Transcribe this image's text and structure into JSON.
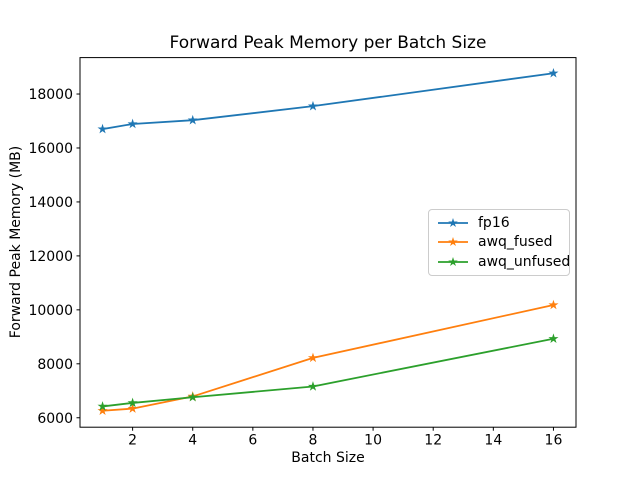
{
  "chart_data": {
    "type": "line",
    "title": "Forward Peak Memory per Batch Size",
    "xlabel": "Batch Size",
    "ylabel": "Forward Peak Memory (MB)",
    "x": [
      1,
      2,
      4,
      8,
      16
    ],
    "series": [
      {
        "name": "fp16",
        "color": "#1f77b4",
        "marker": "star",
        "values": [
          16700,
          16890,
          17030,
          17550,
          18770
        ]
      },
      {
        "name": "awq_fused",
        "color": "#ff7f0e",
        "marker": "star",
        "values": [
          6260,
          6340,
          6790,
          8220,
          10180
        ]
      },
      {
        "name": "awq_unfused",
        "color": "#2ca02c",
        "marker": "star",
        "values": [
          6420,
          6550,
          6760,
          7160,
          8930
        ]
      }
    ],
    "xticks": [
      2,
      4,
      6,
      8,
      10,
      12,
      14,
      16
    ],
    "yticks": [
      6000,
      8000,
      10000,
      12000,
      14000,
      16000,
      18000
    ],
    "xlim": [
      0.25,
      16.75
    ],
    "ylim": [
      5650,
      19350
    ],
    "grid": false,
    "legend_position": "center right",
    "axis_color": "#000000",
    "background": "#ffffff"
  }
}
